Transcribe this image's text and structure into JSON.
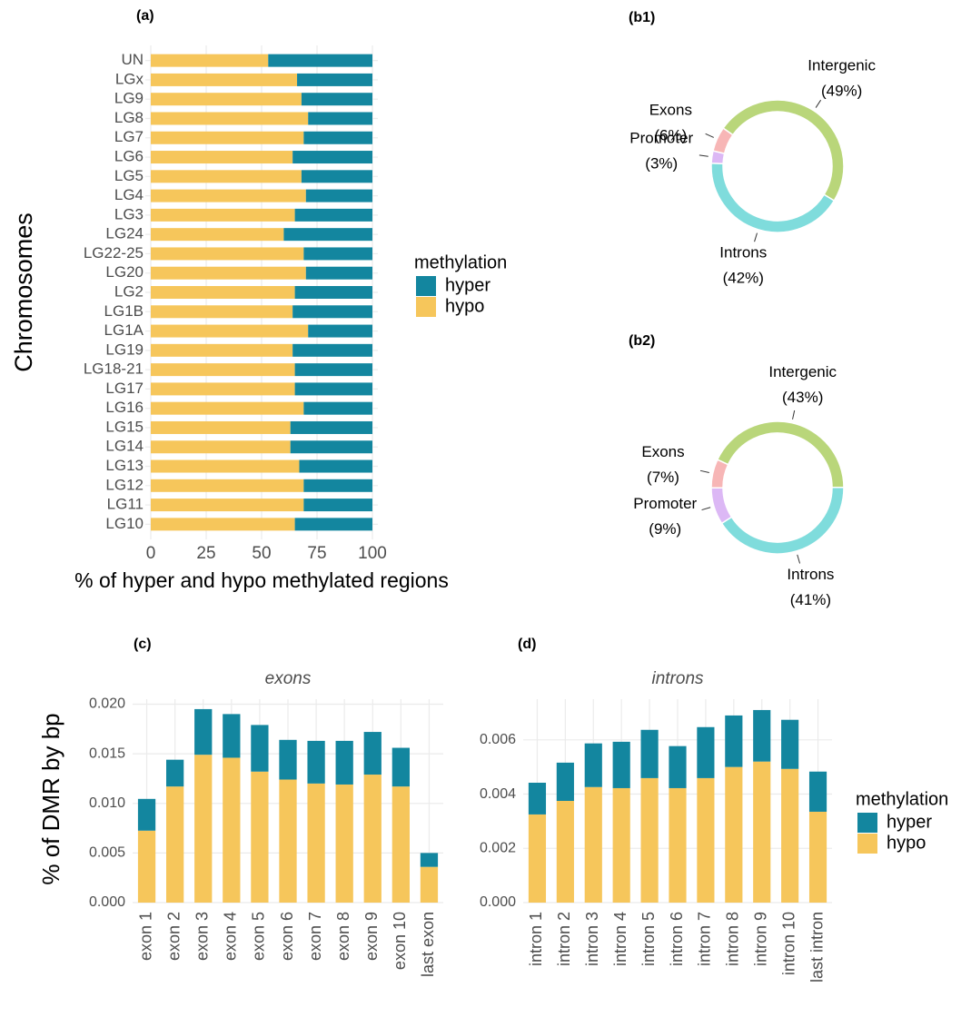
{
  "chart_data": [
    {
      "type": "hbar",
      "panel_label": "(a)",
      "xlabel": "% of hyper and hypo methylated regions",
      "ylabel": "Chromosomes",
      "legend_title": "methylation",
      "categories": [
        "UN",
        "LGx",
        "LG9",
        "LG8",
        "LG7",
        "LG6",
        "LG5",
        "LG4",
        "LG3",
        "LG24",
        "LG22-25",
        "LG20",
        "LG2",
        "LG1B",
        "LG1A",
        "LG19",
        "LG18-21",
        "LG17",
        "LG16",
        "LG15",
        "LG14",
        "LG13",
        "LG12",
        "LG11",
        "LG10"
      ],
      "series": [
        {
          "name": "hyper",
          "color": "#13869f",
          "values": [
            47,
            34,
            32,
            29,
            31,
            36,
            32,
            30,
            35,
            40,
            31,
            30,
            35,
            36,
            29,
            36,
            35,
            35,
            31,
            37,
            37,
            33,
            31,
            31,
            35
          ]
        },
        {
          "name": "hypo",
          "color": "#f6c65b",
          "values": [
            53,
            66,
            68,
            71,
            69,
            64,
            68,
            70,
            65,
            60,
            69,
            70,
            65,
            64,
            71,
            64,
            65,
            65,
            69,
            63,
            63,
            67,
            69,
            69,
            65
          ]
        }
      ],
      "xlim": [
        0,
        100
      ],
      "xticks": [
        0,
        25,
        50,
        75,
        100
      ],
      "grid": true
    },
    {
      "type": "pie",
      "panel_label": "(b1)",
      "categories": [
        "Intergenic",
        "Introns",
        "Promoter",
        "Exons"
      ],
      "values": [
        49,
        42,
        3,
        6
      ],
      "value_labels": [
        "(49%)",
        "(42%)",
        "(3%)",
        "(6%)"
      ],
      "colors": [
        "#b9d67a",
        "#7fdcdc",
        "#dcb8f5",
        "#f7b6b6"
      ]
    },
    {
      "type": "pie",
      "panel_label": "(b2)",
      "categories": [
        "Intergenic",
        "Introns",
        "Promoter",
        "Exons"
      ],
      "values": [
        43,
        41,
        9,
        7
      ],
      "value_labels": [
        "(43%)",
        "(41%)",
        "(9%)",
        "(7%)"
      ],
      "colors": [
        "#b9d67a",
        "#7fdcdc",
        "#dcb8f5",
        "#f7b6b6"
      ]
    },
    {
      "type": "vbar",
      "panel_label": "(c)",
      "title": "exons",
      "ylabel": "% of DMR by bp",
      "categories": [
        "exon 1",
        "exon 2",
        "exon 3",
        "exon 4",
        "exon 5",
        "exon 6",
        "exon 7",
        "exon 8",
        "exon 9",
        "exon 10",
        "last exon"
      ],
      "series": [
        {
          "name": "hyper",
          "color": "#13869f",
          "values": [
            0.0032,
            0.0027,
            0.0046,
            0.0044,
            0.0047,
            0.004,
            0.0043,
            0.0044,
            0.0043,
            0.0039,
            0.0014
          ]
        },
        {
          "name": "hypo",
          "color": "#f6c65b",
          "values": [
            0.00725,
            0.0117,
            0.0149,
            0.0146,
            0.0132,
            0.0124,
            0.012,
            0.0119,
            0.0129,
            0.0117,
            0.0036
          ]
        }
      ],
      "ylim": [
        0,
        0.0205
      ],
      "yticks": [
        {
          "value": 0,
          "label": "0.000"
        },
        {
          "value": 0.005,
          "label": "0.005"
        },
        {
          "value": 0.01,
          "label": "0.010"
        },
        {
          "value": 0.015,
          "label": "0.015"
        },
        {
          "value": 0.02,
          "label": "0.020"
        }
      ],
      "grid": true
    },
    {
      "type": "vbar",
      "panel_label": "(d)",
      "title": "introns",
      "legend_title": "methylation",
      "categories": [
        "intron 1",
        "intron 2",
        "intron 3",
        "intron 4",
        "intron 5",
        "intron 6",
        "intron 7",
        "intron 8",
        "intron 9",
        "intron 10",
        "last intron"
      ],
      "series": [
        {
          "name": "hyper",
          "color": "#13869f",
          "values": [
            0.00117,
            0.00141,
            0.00161,
            0.00171,
            0.00178,
            0.00155,
            0.00188,
            0.0019,
            0.0019,
            0.00181,
            0.00148
          ]
        },
        {
          "name": "hypo",
          "color": "#f6c65b",
          "values": [
            0.00325,
            0.00375,
            0.00426,
            0.00422,
            0.00459,
            0.00422,
            0.00459,
            0.005,
            0.0052,
            0.00493,
            0.00335
          ]
        }
      ],
      "ylim": [
        0,
        0.0075
      ],
      "yticks": [
        {
          "value": 0,
          "label": "0.000"
        },
        {
          "value": 0.002,
          "label": "0.002"
        },
        {
          "value": 0.004,
          "label": "0.004"
        },
        {
          "value": 0.006,
          "label": "0.006"
        }
      ],
      "grid": true
    }
  ]
}
